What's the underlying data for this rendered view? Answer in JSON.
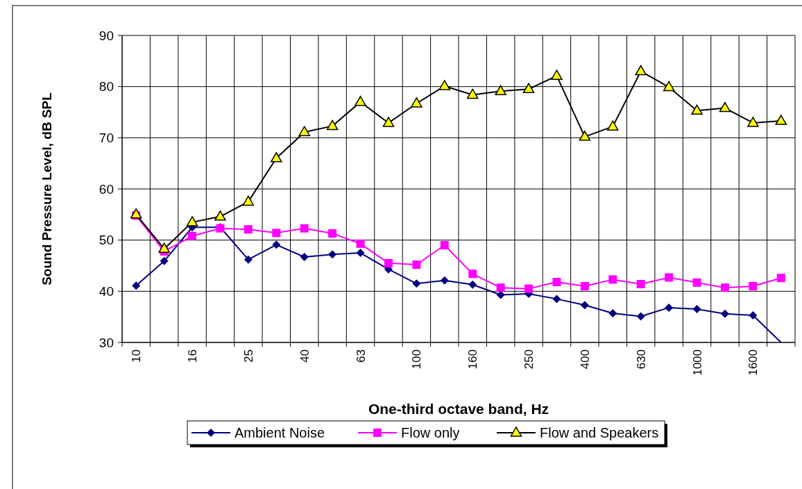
{
  "chart_data": {
    "type": "line",
    "xlabel": "One-third octave band, Hz",
    "ylabel": "Sound Pressure Level, dB SPL",
    "categories": [
      "10",
      null,
      "16",
      null,
      "25",
      null,
      "40",
      null,
      "63",
      null,
      "100",
      null,
      "160",
      null,
      "250",
      null,
      "400",
      null,
      "630",
      null,
      "1000",
      null,
      "1600",
      null
    ],
    "series": [
      {
        "name": "Ambient Noise",
        "color": "#000080",
        "marker": "diamond",
        "values": [
          41.1,
          45.9,
          52.5,
          52.5,
          46.2,
          49.1,
          46.7,
          47.2,
          47.5,
          44.3,
          41.5,
          42.1,
          41.3,
          39.3,
          39.5,
          38.5,
          37.3,
          35.7,
          35.1,
          36.8,
          36.5,
          35.6,
          35.3,
          30
        ]
      },
      {
        "name": "Flow only",
        "color": "#ff00ff",
        "marker": "square",
        "values": [
          54.8,
          47.8,
          50.8,
          52.3,
          52.1,
          51.4,
          52.3,
          51.3,
          49.3,
          45.5,
          45.2,
          49,
          43.4,
          40.7,
          40.5,
          41.8,
          41,
          42.3,
          41.4,
          42.7,
          41.7,
          40.7,
          41,
          42.6
        ]
      },
      {
        "name": "Flow and Speakers",
        "color": "#000000",
        "marker": "triangle",
        "values": [
          55,
          48.3,
          53.5,
          54.6,
          57.5,
          66,
          71.1,
          72.3,
          77,
          72.9,
          76.7,
          80.1,
          78.4,
          79.1,
          79.5,
          82.1,
          70.2,
          72.2,
          83,
          79.9,
          75.3,
          75.8,
          72.9,
          73.3
        ]
      }
    ],
    "ylim": [
      30,
      90
    ],
    "yticks": [
      30,
      40,
      50,
      60,
      70,
      80,
      90
    ],
    "grid": true,
    "legend": "bottom"
  }
}
